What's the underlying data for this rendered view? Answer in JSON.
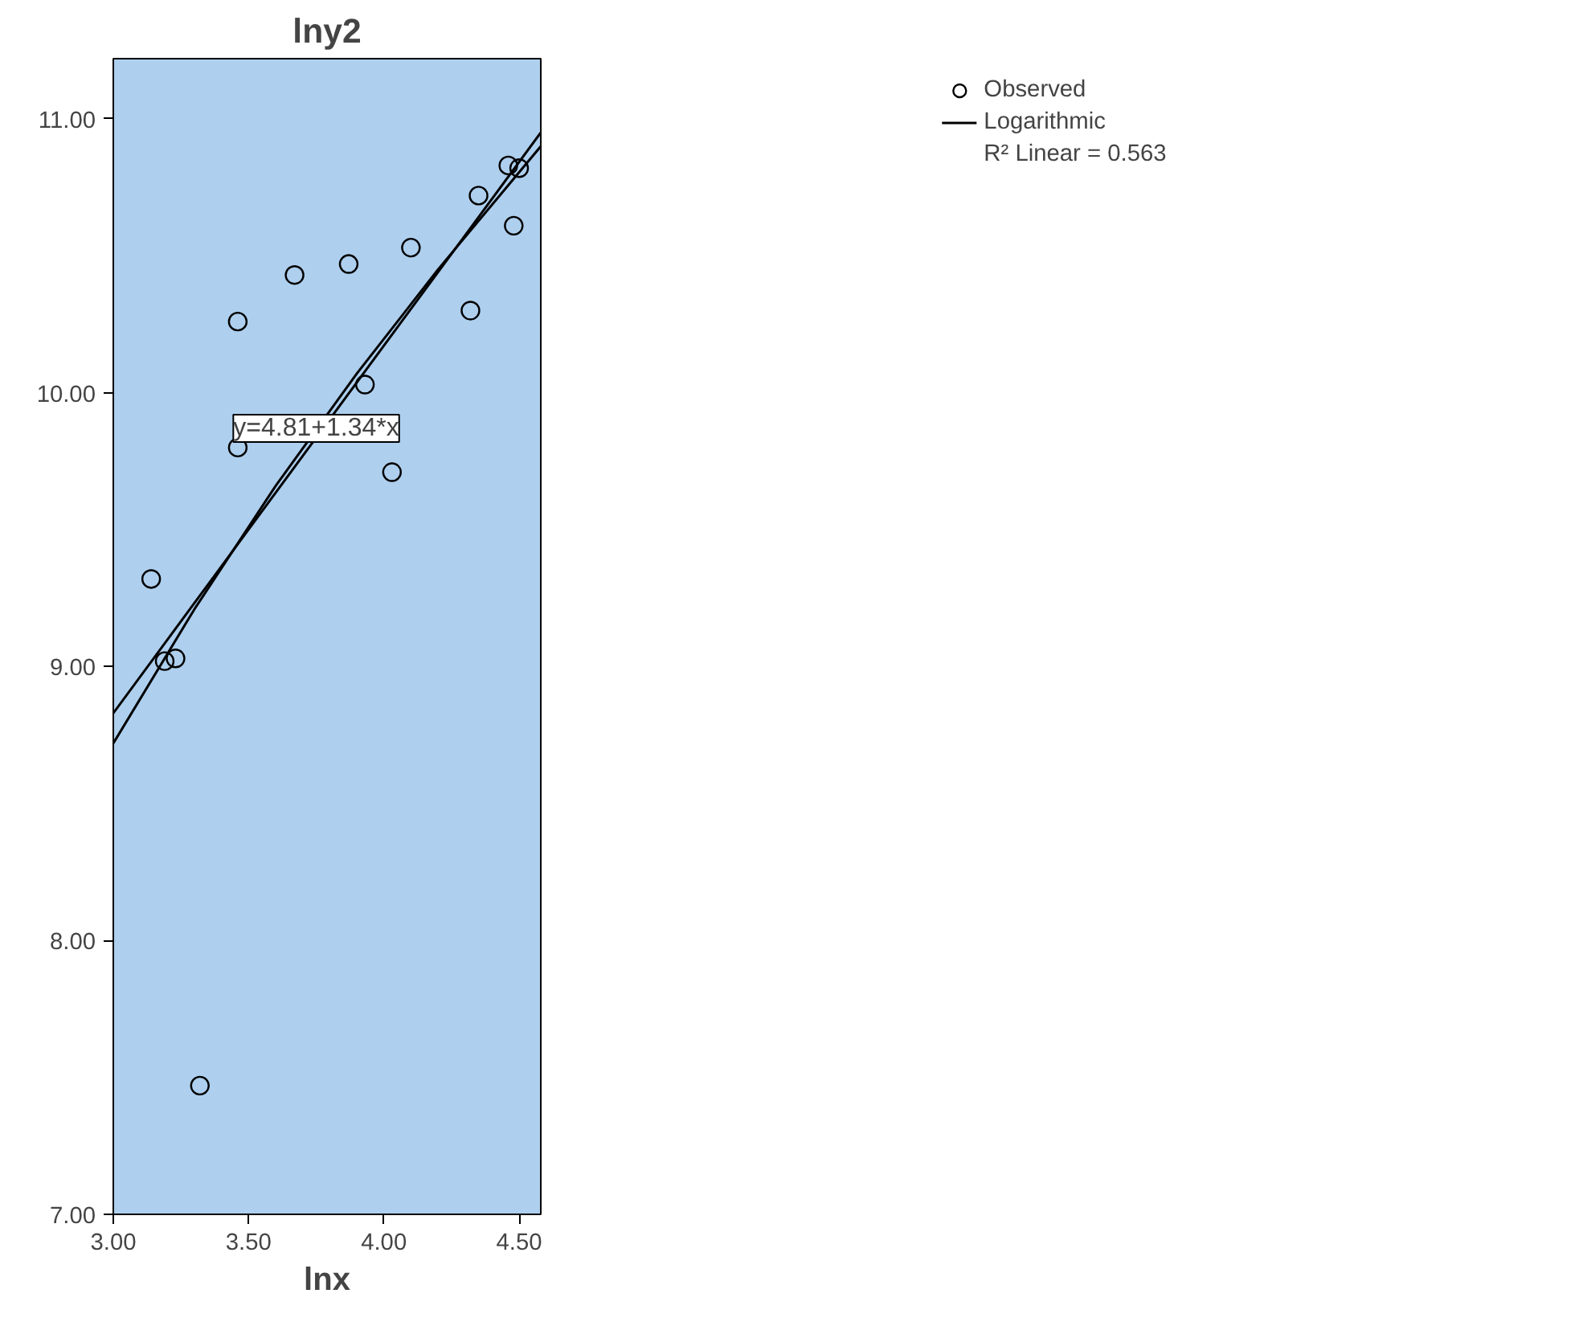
{
  "chart_data": {
    "type": "scatter",
    "title": "lny2",
    "xlabel": "lnx",
    "xlim": [
      3.0,
      4.58
    ],
    "ylim": [
      7.0,
      11.22
    ],
    "xticks": [
      {
        "value": 3.0,
        "label": "3.00"
      },
      {
        "value": 3.5,
        "label": "3.50"
      },
      {
        "value": 4.0,
        "label": "4.00"
      },
      {
        "value": 4.5,
        "label": "4.50"
      }
    ],
    "yticks": [
      {
        "value": 7.0,
        "label": "7.00"
      },
      {
        "value": 8.0,
        "label": "8.00"
      },
      {
        "value": 9.0,
        "label": "9.00"
      },
      {
        "value": 10.0,
        "label": "10.00"
      },
      {
        "value": 11.0,
        "label": "11.00"
      }
    ],
    "grid": false,
    "legend": "top right",
    "series": [
      {
        "name": "Observed",
        "marker": "circle",
        "color": "#000000",
        "x": [
          3.14,
          3.19,
          3.23,
          3.32,
          3.46,
          3.46,
          3.67,
          3.87,
          3.93,
          4.03,
          4.1,
          4.32,
          4.35,
          4.46,
          4.48,
          4.5
        ],
        "values": [
          9.32,
          9.02,
          9.03,
          7.47,
          9.8,
          10.26,
          10.43,
          10.47,
          10.03,
          9.71,
          10.53,
          10.3,
          10.72,
          10.83,
          10.61,
          10.82
        ]
      },
      {
        "name": "Logarithmic",
        "type": "line",
        "marker": "none",
        "color": "#000000",
        "x": [
          3.0,
          3.3,
          3.6,
          3.9,
          4.2,
          4.58
        ],
        "values": [
          8.72,
          9.21,
          9.66,
          10.07,
          10.45,
          10.9
        ]
      },
      {
        "type": "line",
        "marker": "none",
        "color": "#000000",
        "x": [
          3.0,
          4.58
        ],
        "values": [
          8.83,
          10.95
        ]
      }
    ],
    "annotations": [
      {
        "text": "y=4.81+1.34*x",
        "x": 3.75,
        "y": 9.87
      },
      "R² Linear = 0.563"
    ]
  }
}
